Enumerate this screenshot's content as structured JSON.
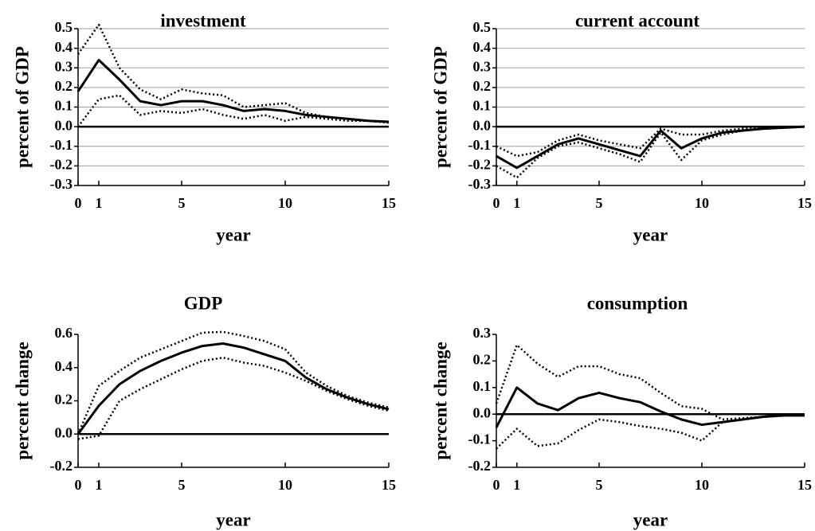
{
  "chart_data": [
    {
      "type": "line",
      "title": "investment",
      "ylabel": "percent of GDP",
      "xlabel": "year",
      "grid": true,
      "x": [
        0,
        1,
        2,
        3,
        4,
        5,
        6,
        7,
        8,
        9,
        10,
        11,
        12,
        13,
        14,
        15
      ],
      "xlim": [
        0,
        15
      ],
      "xticks": [
        0,
        1,
        5,
        10,
        15
      ],
      "ylim": [
        -0.3,
        0.5
      ],
      "yticks": [
        0.5,
        0.4,
        0.3,
        0.2,
        0.1,
        {
          "value": 0,
          "label": "0.0"
        },
        -0.1,
        -0.2,
        -0.3
      ],
      "series": [
        {
          "color": "#000000",
          "style": "solid",
          "values": [
            0.18,
            0.34,
            0.24,
            0.13,
            0.11,
            0.13,
            0.13,
            0.11,
            0.08,
            0.09,
            0.08,
            0.06,
            0.05,
            0.04,
            0.03,
            0.025
          ]
        },
        {
          "color": "#000000",
          "style": "dotted",
          "values": [
            0.37,
            0.52,
            0.3,
            0.19,
            0.14,
            0.19,
            0.17,
            0.16,
            0.1,
            0.11,
            0.12,
            0.07,
            0.05,
            0.04,
            0.03,
            0.025
          ]
        },
        {
          "color": "#000000",
          "style": "dotted",
          "values": [
            0.0,
            0.14,
            0.16,
            0.06,
            0.08,
            0.07,
            0.09,
            0.06,
            0.04,
            0.06,
            0.03,
            0.05,
            0.04,
            0.03,
            0.03,
            0.02
          ]
        }
      ]
    },
    {
      "type": "line",
      "title": "current account",
      "ylabel": "percent of GDP",
      "xlabel": "year",
      "grid": true,
      "x": [
        0,
        1,
        2,
        3,
        4,
        5,
        6,
        7,
        8,
        9,
        10,
        11,
        12,
        13,
        14,
        15
      ],
      "xlim": [
        0,
        15
      ],
      "xticks": [
        0,
        1,
        5,
        10,
        15
      ],
      "ylim": [
        -0.3,
        0.5
      ],
      "yticks": [
        0.5,
        0.4,
        0.3,
        0.2,
        0.1,
        {
          "value": 0,
          "label": "0.0"
        },
        -0.1,
        -0.2,
        -0.3
      ],
      "series": [
        {
          "color": "#000000",
          "style": "solid",
          "values": [
            -0.15,
            -0.21,
            -0.15,
            -0.09,
            -0.06,
            -0.09,
            -0.12,
            -0.15,
            -0.02,
            -0.11,
            -0.06,
            -0.03,
            -0.02,
            -0.01,
            -0.005,
            0
          ]
        },
        {
          "color": "#000000",
          "style": "dotted",
          "values": [
            -0.1,
            -0.15,
            -0.13,
            -0.07,
            -0.04,
            -0.07,
            -0.09,
            -0.11,
            -0.01,
            -0.04,
            -0.04,
            -0.02,
            -0.01,
            -0.005,
            0,
            0
          ]
        },
        {
          "color": "#000000",
          "style": "dotted",
          "values": [
            -0.2,
            -0.26,
            -0.16,
            -0.1,
            -0.08,
            -0.11,
            -0.14,
            -0.18,
            -0.03,
            -0.17,
            -0.07,
            -0.04,
            -0.02,
            -0.01,
            -0.005,
            0
          ]
        }
      ]
    },
    {
      "type": "line",
      "title": "GDP",
      "ylabel": "percent change",
      "xlabel": "year",
      "grid": false,
      "x": [
        0,
        1,
        2,
        3,
        4,
        5,
        6,
        7,
        8,
        9,
        10,
        11,
        12,
        13,
        14,
        15
      ],
      "xlim": [
        0,
        15
      ],
      "xticks": [
        0,
        1,
        5,
        10,
        15
      ],
      "ylim": [
        -0.2,
        0.6
      ],
      "yticks": [
        0.6,
        0.4,
        0.2,
        {
          "value": 0,
          "label": "0.0"
        },
        -0.2
      ],
      "series": [
        {
          "color": "#000000",
          "style": "solid",
          "values": [
            0,
            0.17,
            0.3,
            0.38,
            0.44,
            0.49,
            0.53,
            0.545,
            0.52,
            0.48,
            0.44,
            0.34,
            0.27,
            0.22,
            0.18,
            0.15
          ]
        },
        {
          "color": "#000000",
          "style": "dotted",
          "values": [
            0,
            0.29,
            0.38,
            0.46,
            0.51,
            0.56,
            0.61,
            0.615,
            0.59,
            0.56,
            0.51,
            0.37,
            0.29,
            0.23,
            0.19,
            0.16
          ]
        },
        {
          "color": "#000000",
          "style": "dotted",
          "values": [
            -0.03,
            -0.01,
            0.2,
            0.27,
            0.33,
            0.39,
            0.44,
            0.46,
            0.43,
            0.41,
            0.37,
            0.32,
            0.26,
            0.21,
            0.17,
            0.14
          ]
        }
      ]
    },
    {
      "type": "line",
      "title": "consumption",
      "ylabel": "percent change",
      "xlabel": "year",
      "grid": false,
      "x": [
        0,
        1,
        2,
        3,
        4,
        5,
        6,
        7,
        8,
        9,
        10,
        11,
        12,
        13,
        14,
        15
      ],
      "xlim": [
        0,
        15
      ],
      "xticks": [
        0,
        1,
        5,
        10,
        15
      ],
      "ylim": [
        -0.2,
        0.3
      ],
      "yticks": [
        0.3,
        0.2,
        0.1,
        {
          "value": 0,
          "label": "0.0"
        },
        -0.1,
        -0.2
      ],
      "series": [
        {
          "color": "#000000",
          "style": "solid",
          "values": [
            -0.05,
            0.1,
            0.04,
            0.015,
            0.06,
            0.08,
            0.06,
            0.045,
            0.01,
            -0.02,
            -0.04,
            -0.03,
            -0.02,
            -0.01,
            -0.005,
            -0.005
          ]
        },
        {
          "color": "#000000",
          "style": "dotted",
          "values": [
            0.04,
            0.26,
            0.19,
            0.14,
            0.18,
            0.18,
            0.15,
            0.135,
            0.08,
            0.03,
            0.02,
            -0.02,
            -0.015,
            -0.01,
            -0.005,
            -0.005
          ]
        },
        {
          "color": "#000000",
          "style": "dotted",
          "values": [
            -0.13,
            -0.055,
            -0.12,
            -0.11,
            -0.06,
            -0.02,
            -0.03,
            -0.045,
            -0.055,
            -0.07,
            -0.1,
            -0.03,
            -0.02,
            -0.01,
            -0.005,
            -0.005
          ]
        }
      ]
    }
  ]
}
